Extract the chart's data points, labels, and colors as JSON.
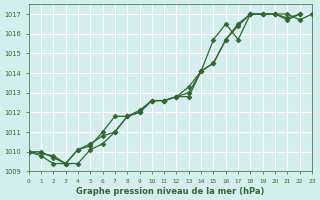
{
  "title": "Graphe pression niveau de la mer (hPa)",
  "bg_color": "#d4eeee",
  "grid_color": "#ffffff",
  "line_color": "#336633",
  "xlim": [
    0,
    23
  ],
  "ylim": [
    1009,
    1017.5
  ],
  "yticks": [
    1009,
    1010,
    1011,
    1012,
    1013,
    1014,
    1015,
    1016,
    1017
  ],
  "xticks": [
    0,
    1,
    2,
    3,
    4,
    5,
    6,
    7,
    8,
    9,
    10,
    11,
    12,
    13,
    14,
    15,
    16,
    17,
    18,
    19,
    20,
    21,
    22,
    23
  ],
  "series1_x": [
    0,
    1,
    2,
    3,
    4,
    5,
    6,
    7,
    8,
    9,
    10,
    11,
    12,
    13,
    14,
    15,
    16,
    17,
    18,
    19,
    20,
    21,
    22
  ],
  "series1_y": [
    1010.0,
    1010.0,
    1009.7,
    1009.4,
    1010.1,
    1010.3,
    1011.0,
    1011.8,
    1011.8,
    1012.0,
    1012.6,
    1012.6,
    1012.8,
    1012.8,
    1014.1,
    1015.7,
    1016.5,
    1015.7,
    1017.0,
    1017.0,
    1017.0,
    1016.7,
    1017.0
  ],
  "series2_x": [
    0,
    1,
    2,
    3,
    4,
    5,
    6,
    7,
    8,
    9,
    10,
    11,
    12,
    13,
    14,
    15,
    16,
    17,
    18,
    19,
    20,
    21,
    22
  ],
  "series2_y": [
    1010.0,
    1009.8,
    1009.4,
    1009.4,
    1010.1,
    1010.4,
    1010.8,
    1011.0,
    1011.8,
    1012.0,
    1012.6,
    1012.6,
    1012.8,
    1013.3,
    1014.1,
    1014.5,
    1015.7,
    1016.4,
    1017.0,
    1017.0,
    1017.0,
    1016.8,
    1017.0
  ],
  "series3_x": [
    0,
    2,
    3,
    4,
    5,
    6,
    7,
    8,
    9,
    10,
    11,
    12,
    13,
    14,
    15,
    16,
    17,
    18,
    19,
    20,
    21,
    22,
    23
  ],
  "series3_y": [
    1010.0,
    1009.8,
    1009.4,
    1009.4,
    1010.1,
    1010.4,
    1011.0,
    1011.8,
    1012.1,
    1012.6,
    1012.6,
    1012.8,
    1013.0,
    1014.1,
    1014.5,
    1015.7,
    1016.5,
    1017.0,
    1017.0,
    1017.0,
    1017.0,
    1016.7,
    1017.0
  ]
}
